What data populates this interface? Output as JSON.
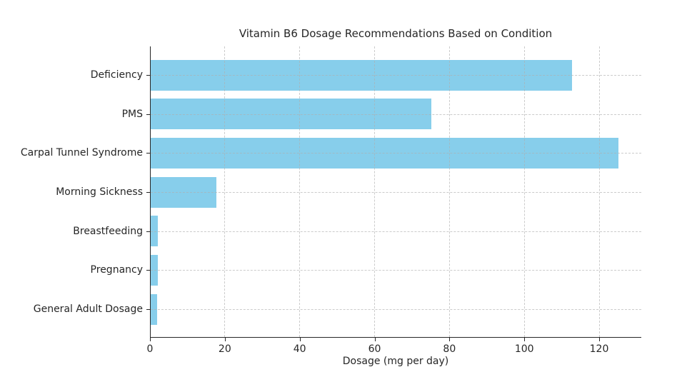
{
  "chart_data": {
    "type": "bar",
    "orientation": "horizontal",
    "title": "Vitamin B6 Dosage Recommendations Based on Condition",
    "xlabel": "Dosage (mg per day)",
    "ylabel": "",
    "categories": [
      "Deficiency",
      "PMS",
      "Carpal Tunnel Syndrome",
      "Morning Sickness",
      "Breastfeeding",
      "Pregnancy",
      "General Adult Dosage"
    ],
    "values": [
      112.5,
      75,
      125,
      17.5,
      2.0,
      1.9,
      1.7
    ],
    "xticks": [
      0,
      20,
      40,
      60,
      80,
      100,
      120
    ],
    "xlim": [
      0,
      131.25
    ],
    "grid": true,
    "grid_style": "dashed",
    "legend_position": "none",
    "bar_color": "#87CEEB",
    "text_color": "#262626",
    "grid_color": "#afafaf",
    "background_color": "#ffffff"
  }
}
